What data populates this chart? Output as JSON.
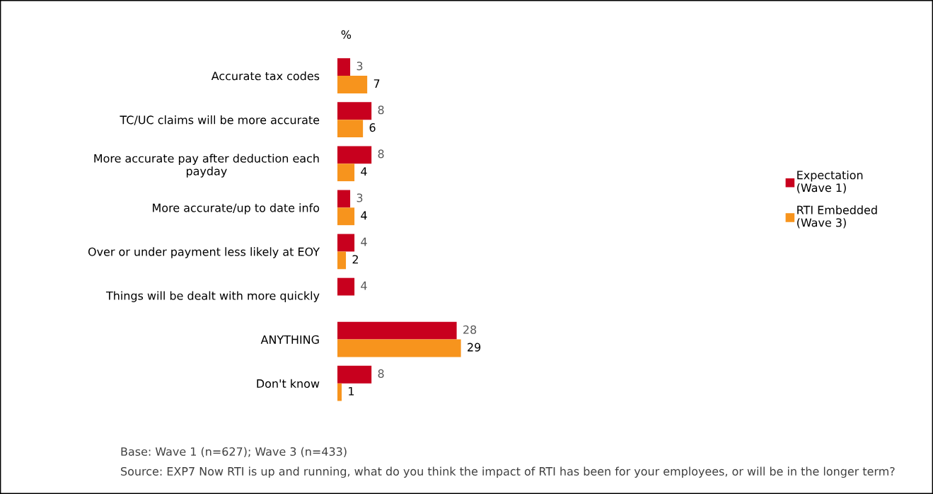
{
  "chart_data": {
    "type": "bar",
    "orientation": "horizontal",
    "xlabel": "%",
    "categories": [
      "Accurate tax codes",
      "TC/UC claims will be more accurate",
      "More accurate pay after deduction each\npayday",
      "More accurate/up to date info",
      "Over or under payment less likely at EOY",
      "Things will be dealt with more quickly",
      "ANYTHING",
      "Don't know"
    ],
    "series": [
      {
        "name": "Expectation\n(Wave 1)",
        "color": "#c8001e",
        "values": [
          3,
          8,
          8,
          3,
          4,
          4,
          28,
          8
        ]
      },
      {
        "name": "RTI Embedded\n(Wave 3)",
        "color": "#f7941d",
        "values": [
          7,
          6,
          4,
          4,
          2,
          null,
          29,
          1
        ]
      }
    ],
    "data_labels": true,
    "legend": "right",
    "grid": false,
    "annotations": [
      "Base: Wave 1 (n=627); Wave 3 (n=433)",
      "Source: EXP7 Now RTI is up and running, what do you think the impact of RTI has been for your employees, or will be in the longer term?"
    ]
  }
}
